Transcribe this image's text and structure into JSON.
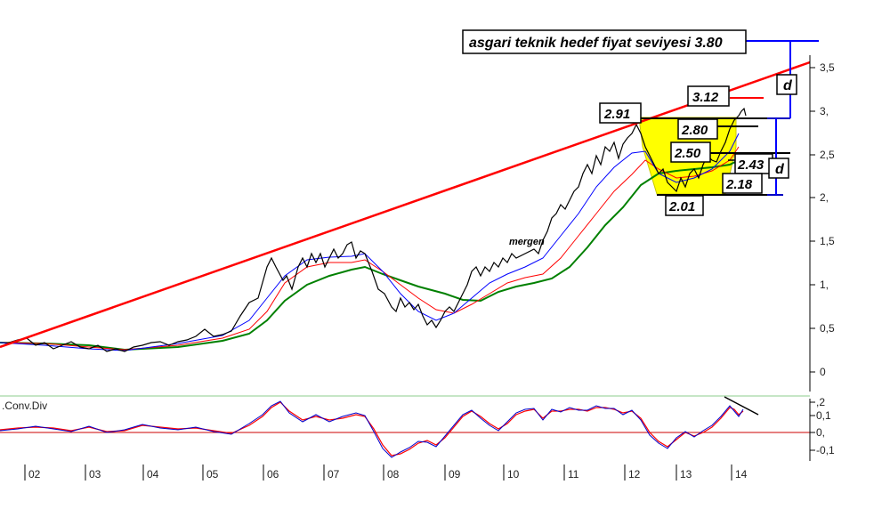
{
  "chart_data": [
    {
      "type": "line",
      "title": "",
      "xlabel": "",
      "ylabel": "",
      "x_tick_labels": [
        "02",
        "03",
        "04",
        "05",
        "06",
        "07",
        "08",
        "09",
        "10",
        "11",
        "12",
        "13",
        "14"
      ],
      "y_tick_labels": [
        "3,5",
        "3,",
        "2,5",
        "2,",
        "1,5",
        "1,",
        "0,5",
        "0"
      ],
      "ylim": [
        -0.2,
        3.8
      ],
      "grid": false,
      "price_series_x": [
        2001.0,
        2001.5,
        2002.0,
        2002.5,
        2003.0,
        2003.5,
        2004.0,
        2004.5,
        2005.0,
        2005.5,
        2005.8,
        2006.1,
        2006.3,
        2006.6,
        2006.8,
        2007.0,
        2007.3,
        2007.6,
        2007.8,
        2008.0,
        2008.3,
        2008.5,
        2008.7,
        2009.0,
        2009.3,
        2009.6,
        2010.0,
        2010.3,
        2010.6,
        2010.9,
        2011.1,
        2011.3,
        2011.6,
        2011.9,
        2012.1,
        2012.3,
        2012.5,
        2012.7,
        2012.9,
        2013.1,
        2013.3,
        2013.5,
        2013.7,
        2013.8,
        2013.9,
        2014.0,
        2014.1
      ],
      "price_series_y": [
        0.25,
        0.3,
        0.3,
        0.28,
        0.25,
        0.3,
        0.32,
        0.35,
        0.4,
        0.5,
        0.7,
        1.0,
        1.35,
        1.25,
        1.35,
        1.4,
        1.5,
        1.4,
        1.3,
        0.8,
        0.7,
        0.55,
        0.7,
        0.75,
        0.85,
        1.2,
        1.3,
        1.35,
        1.45,
        2.0,
        2.2,
        2.5,
        2.6,
        2.6,
        2.7,
        2.4,
        2.1,
        2.1,
        2.2,
        2.0,
        2.2,
        2.3,
        2.3,
        2.6,
        2.9,
        3.1,
        3.0
      ],
      "annotations": [
        "2.91",
        "3.12",
        "2.80",
        "2.50",
        "2.43",
        "2.18",
        "2.01",
        "asgari teknik hedef fiyat seviyesi 3.80",
        "d",
        "d",
        "mergen"
      ],
      "lines": [
        {
          "kind": "trendline",
          "color": "#ff0000"
        },
        {
          "kind": "moving-average",
          "color": "#008000"
        },
        {
          "kind": "moving-average",
          "color": "#ff0000"
        },
        {
          "kind": "moving-average",
          "color": "#0000ff"
        },
        {
          "kind": "target-level",
          "value": 3.8,
          "color": "#0000ff"
        },
        {
          "kind": "highlight-region",
          "color": "#ffff00"
        }
      ]
    },
    {
      "type": "line",
      "title": ".Conv.Div",
      "y_tick_labels": [
        ",2",
        "0,1",
        "0,",
        "-0,1"
      ],
      "ylim": [
        -0.14,
        0.2
      ],
      "zero_line_color": "#cc0000"
    }
  ],
  "colors": {
    "trendline": "#ff0000",
    "target": "#0000ff",
    "highlight": "#ffff00",
    "price": "#000000",
    "ma_long": "#008000",
    "ma_mid": "#ff0000",
    "ma_short": "#0000ff"
  }
}
